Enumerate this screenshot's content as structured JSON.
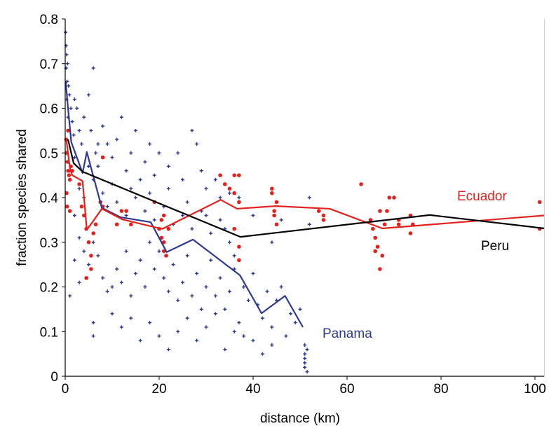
{
  "chart_data": {
    "type": "scatter",
    "title": "",
    "xlabel": "distance (km)",
    "ylabel": "fraction species shared",
    "xlim": [
      0,
      102
    ],
    "ylim": [
      0,
      0.8
    ],
    "xticks": [
      0,
      20,
      40,
      60,
      80,
      100
    ],
    "yticks": [
      0,
      0.1,
      0.2,
      0.3,
      0.4,
      0.5,
      0.6,
      0.7,
      0.8
    ],
    "xtick_labels": [
      "0",
      "20",
      "40",
      "60",
      "80",
      "100"
    ],
    "ytick_labels": [
      "0",
      "0.1",
      "0.2",
      "0.3",
      "0.4",
      "0.5",
      "0.6",
      "0.7",
      "0.8"
    ],
    "grid": false,
    "colors": {
      "Panama": "#2e3a91",
      "Ecuador": "#e3211c",
      "Peru": "#000000"
    },
    "series": [
      {
        "name": "Panama",
        "label": "Panama",
        "marker": "plus",
        "points": [
          [
            0.1,
            0.77
          ],
          [
            0.2,
            0.74
          ],
          [
            0.3,
            0.72
          ],
          [
            0.2,
            0.69
          ],
          [
            0.5,
            0.7
          ],
          [
            0.4,
            0.66
          ],
          [
            0.7,
            0.65
          ],
          [
            0.3,
            0.62
          ],
          [
            0.9,
            0.63
          ],
          [
            1.2,
            0.6
          ],
          [
            0.6,
            0.58
          ],
          [
            1.5,
            0.57
          ],
          [
            2,
            0.62
          ],
          [
            2.5,
            0.6
          ],
          [
            1.8,
            0.54
          ],
          [
            3,
            0.55
          ],
          [
            3.5,
            0.52
          ],
          [
            4,
            0.58
          ],
          [
            5,
            0.63
          ],
          [
            5.5,
            0.55
          ],
          [
            6,
            0.69
          ],
          [
            6.5,
            0.5
          ],
          [
            7,
            0.47
          ],
          [
            8,
            0.56
          ],
          [
            9,
            0.52
          ],
          [
            10,
            0.49
          ],
          [
            11,
            0.53
          ],
          [
            12,
            0.58
          ],
          [
            13,
            0.46
          ],
          [
            14,
            0.5
          ],
          [
            15,
            0.55
          ],
          [
            16,
            0.44
          ],
          [
            17,
            0.48
          ],
          [
            18,
            0.52
          ],
          [
            19,
            0.45
          ],
          [
            20,
            0.5
          ],
          [
            22,
            0.47
          ],
          [
            24,
            0.5
          ],
          [
            25,
            0.44
          ],
          [
            27,
            0.55
          ],
          [
            28,
            0.52
          ],
          [
            29,
            0.46
          ],
          [
            30,
            0.42
          ],
          [
            32,
            0.44
          ],
          [
            33,
            0.4
          ],
          [
            35,
            0.41
          ],
          [
            37,
            0.4
          ],
          [
            3,
            0.42
          ],
          [
            4,
            0.4
          ],
          [
            6,
            0.44
          ],
          [
            8,
            0.41
          ],
          [
            9,
            0.38
          ],
          [
            11,
            0.39
          ],
          [
            13,
            0.36
          ],
          [
            15,
            0.4
          ],
          [
            17,
            0.37
          ],
          [
            19,
            0.35
          ],
          [
            21,
            0.38
          ],
          [
            23,
            0.34
          ],
          [
            25,
            0.36
          ],
          [
            27,
            0.33
          ],
          [
            29,
            0.37
          ],
          [
            31,
            0.32
          ],
          [
            33,
            0.35
          ],
          [
            35,
            0.3
          ],
          [
            36,
            0.27
          ],
          [
            2,
            0.36
          ],
          [
            3,
            0.31
          ],
          [
            4,
            0.28
          ],
          [
            5,
            0.25
          ],
          [
            6,
            0.3
          ],
          [
            7,
            0.27
          ],
          [
            8,
            0.22
          ],
          [
            9,
            0.19
          ],
          [
            10,
            0.2
          ],
          [
            11,
            0.24
          ],
          [
            12,
            0.21
          ],
          [
            13,
            0.28
          ],
          [
            14,
            0.18
          ],
          [
            15,
            0.23
          ],
          [
            16,
            0.26
          ],
          [
            17,
            0.2
          ],
          [
            18,
            0.3
          ],
          [
            19,
            0.24
          ],
          [
            20,
            0.28
          ],
          [
            21,
            0.22
          ],
          [
            22,
            0.19
          ],
          [
            23,
            0.25
          ],
          [
            24,
            0.17
          ],
          [
            25,
            0.21
          ],
          [
            26,
            0.27
          ],
          [
            27,
            0.18
          ],
          [
            28,
            0.23
          ],
          [
            29,
            0.15
          ],
          [
            30,
            0.2
          ],
          [
            31,
            0.26
          ],
          [
            32,
            0.18
          ],
          [
            33,
            0.22
          ],
          [
            34,
            0.15
          ],
          [
            35,
            0.19
          ],
          [
            36,
            0.24
          ],
          [
            37,
            0.12
          ],
          [
            38,
            0.2
          ],
          [
            39,
            0.17
          ],
          [
            40,
            0.23
          ],
          [
            41,
            0.16
          ],
          [
            42,
            0.13
          ],
          [
            43,
            0.19
          ],
          [
            44,
            0.11
          ],
          [
            45,
            0.17
          ],
          [
            46,
            0.2
          ],
          [
            47,
            0.09
          ],
          [
            48,
            0.14
          ],
          [
            49,
            0.12
          ],
          [
            50,
            0.15
          ],
          [
            6,
            0.12
          ],
          [
            6,
            0.09
          ],
          [
            10,
            0.14
          ],
          [
            12,
            0.11
          ],
          [
            14,
            0.13
          ],
          [
            16,
            0.08
          ],
          [
            18,
            0.12
          ],
          [
            20,
            0.09
          ],
          [
            22,
            0.06
          ],
          [
            24,
            0.1
          ],
          [
            26,
            0.13
          ],
          [
            28,
            0.08
          ],
          [
            30,
            0.11
          ],
          [
            32,
            0.14
          ],
          [
            34,
            0.06
          ],
          [
            36,
            0.1
          ],
          [
            38,
            0.09
          ],
          [
            40,
            0.08
          ],
          [
            42,
            0.05
          ],
          [
            44,
            0.07
          ],
          [
            51,
            0.07
          ],
          [
            51,
            0.05
          ],
          [
            51,
            0.04
          ],
          [
            51,
            0.03
          ],
          [
            51,
            0.02
          ],
          [
            51.5,
            0.06
          ],
          [
            51.5,
            0.01
          ],
          [
            1,
            0.46
          ],
          [
            2,
            0.49
          ],
          [
            5,
            0.47
          ],
          [
            7,
            0.52
          ],
          [
            10,
            0.43
          ],
          [
            14,
            0.42
          ],
          [
            18,
            0.41
          ],
          [
            22,
            0.42
          ],
          [
            26,
            0.39
          ],
          [
            30,
            0.36
          ],
          [
            34,
            0.33
          ],
          [
            40,
            0.36
          ],
          [
            44,
            0.3
          ],
          [
            46,
            0.35
          ],
          [
            52,
            0.4
          ],
          [
            52,
            0.34
          ],
          [
            1,
            0.18
          ],
          [
            2,
            0.26
          ],
          [
            3,
            0.21
          ]
        ]
      },
      {
        "name": "Ecuador",
        "label": "Ecuador",
        "marker": "dot",
        "points": [
          [
            0.2,
            0.53
          ],
          [
            0.3,
            0.5
          ],
          [
            0.5,
            0.48
          ],
          [
            0.6,
            0.46
          ],
          [
            0.8,
            0.45
          ],
          [
            1,
            0.44
          ],
          [
            0.3,
            0.41
          ],
          [
            0.6,
            0.55
          ],
          [
            1.2,
            0.47
          ],
          [
            1.5,
            0.46
          ],
          [
            0.4,
            0.38
          ],
          [
            1,
            0.37
          ],
          [
            3,
            0.43
          ],
          [
            3.5,
            0.38
          ],
          [
            4,
            0.36
          ],
          [
            4.5,
            0.33
          ],
          [
            5,
            0.3
          ],
          [
            5.5,
            0.27
          ],
          [
            4.5,
            0.22
          ],
          [
            5.5,
            0.24
          ],
          [
            6,
            0.32
          ],
          [
            6.5,
            0.34
          ],
          [
            8,
            0.49
          ],
          [
            7.5,
            0.39
          ],
          [
            8,
            0.38
          ],
          [
            12,
            0.37
          ],
          [
            13,
            0.37
          ],
          [
            11,
            0.34
          ],
          [
            14,
            0.34
          ],
          [
            19,
            0.39
          ],
          [
            20,
            0.33
          ],
          [
            20.5,
            0.31
          ],
          [
            21,
            0.3
          ],
          [
            21,
            0.28
          ],
          [
            21.5,
            0.27
          ],
          [
            20.5,
            0.35
          ],
          [
            21,
            0.36
          ],
          [
            22,
            0.33
          ],
          [
            33,
            0.45
          ],
          [
            34,
            0.43
          ],
          [
            36,
            0.45
          ],
          [
            37,
            0.45
          ],
          [
            35,
            0.42
          ],
          [
            36,
            0.41
          ],
          [
            37,
            0.39
          ],
          [
            36,
            0.33
          ],
          [
            37,
            0.29
          ],
          [
            37,
            0.26
          ],
          [
            44,
            0.41
          ],
          [
            44,
            0.42
          ],
          [
            45,
            0.39
          ],
          [
            44.5,
            0.37
          ],
          [
            44.5,
            0.36
          ],
          [
            45,
            0.34
          ],
          [
            54,
            0.37
          ],
          [
            55,
            0.36
          ],
          [
            55,
            0.35
          ],
          [
            63,
            0.43
          ],
          [
            65,
            0.35
          ],
          [
            65.5,
            0.33
          ],
          [
            66,
            0.31
          ],
          [
            66.5,
            0.29
          ],
          [
            66,
            0.28
          ],
          [
            67,
            0.24
          ],
          [
            67.5,
            0.27
          ],
          [
            68,
            0.34
          ],
          [
            67,
            0.37
          ],
          [
            68.5,
            0.37
          ],
          [
            69,
            0.4
          ],
          [
            70,
            0.4
          ],
          [
            71,
            0.35
          ],
          [
            71,
            0.34
          ],
          [
            73.5,
            0.36
          ],
          [
            74,
            0.34
          ],
          [
            73.5,
            0.32
          ],
          [
            101,
            0.39
          ],
          [
            101,
            0.33
          ]
        ]
      }
    ],
    "lines": [
      {
        "name": "Panama",
        "points": [
          [
            0.1,
            0.66
          ],
          [
            0.6,
            0.6
          ],
          [
            1.3,
            0.524
          ],
          [
            3.7,
            0.455
          ],
          [
            4.6,
            0.502
          ],
          [
            7.8,
            0.377
          ],
          [
            11.8,
            0.356
          ],
          [
            18.2,
            0.345
          ],
          [
            21.6,
            0.278
          ],
          [
            27.2,
            0.306
          ],
          [
            37.2,
            0.226
          ],
          [
            41.8,
            0.141
          ],
          [
            46.8,
            0.18
          ],
          [
            50.6,
            0.11
          ]
        ]
      },
      {
        "name": "Ecuador",
        "points": [
          [
            0.2,
            0.533
          ],
          [
            1,
            0.466
          ],
          [
            1.5,
            0.45
          ],
          [
            3.7,
            0.437
          ],
          [
            4.6,
            0.328
          ],
          [
            5.8,
            0.345
          ],
          [
            7.8,
            0.375
          ],
          [
            12.2,
            0.351
          ],
          [
            19.3,
            0.333
          ],
          [
            20.7,
            0.33
          ],
          [
            33.1,
            0.395
          ],
          [
            36.6,
            0.375
          ],
          [
            44.8,
            0.381
          ],
          [
            56.3,
            0.375
          ],
          [
            67.5,
            0.331
          ],
          [
            102,
            0.36
          ]
        ]
      },
      {
        "name": "Peru",
        "label": "Peru",
        "points": [
          [
            0.6,
            0.53
          ],
          [
            1.8,
            0.477
          ],
          [
            3.7,
            0.458
          ],
          [
            37.3,
            0.312
          ],
          [
            77.6,
            0.361
          ],
          [
            102,
            0.331
          ]
        ]
      }
    ],
    "legend": "inline labels near lines"
  }
}
